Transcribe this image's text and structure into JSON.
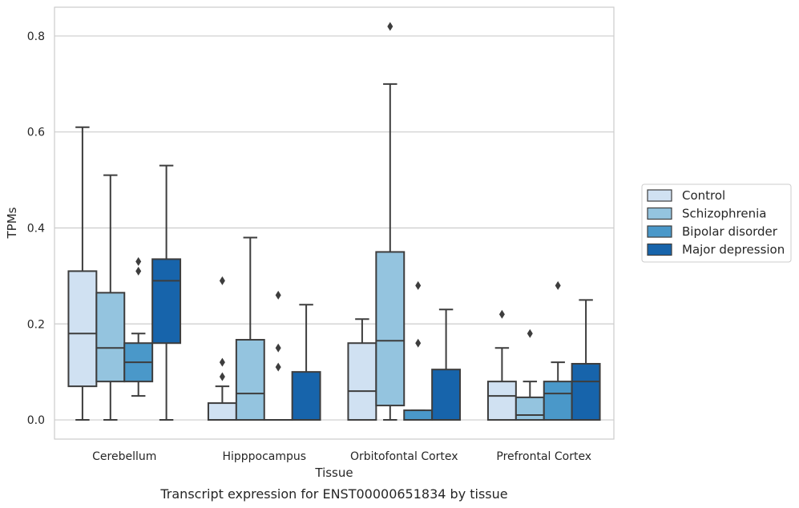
{
  "chart_data": {
    "type": "boxplot",
    "caption": "Transcript expression for ENST00000651834 by tissue",
    "xlabel": "Tissue",
    "ylabel": "TPMs",
    "ylim": [
      -0.04,
      0.86
    ],
    "yticks": [
      0.0,
      0.2,
      0.4,
      0.6,
      0.8
    ],
    "ytick_labels": [
      "0.0",
      "0.2",
      "0.4",
      "0.6",
      "0.8"
    ],
    "grid": "horizontal",
    "legend_position": "right",
    "categories": [
      "Cerebellum",
      "Hipppocampus",
      "Orbitofontal Cortex",
      "Prefrontal Cortex"
    ],
    "series": [
      {
        "name": "Control",
        "color": "#d0e1f2",
        "boxes": [
          {
            "whislo": 0.0,
            "q1": 0.07,
            "med": 0.18,
            "q3": 0.31,
            "whishi": 0.61,
            "fliers": []
          },
          {
            "whislo": 0.0,
            "q1": 0.0,
            "med": 0.0,
            "q3": 0.035,
            "whishi": 0.07,
            "fliers": [
              0.09,
              0.12,
              0.29
            ]
          },
          {
            "whislo": 0.0,
            "q1": 0.0,
            "med": 0.06,
            "q3": 0.16,
            "whishi": 0.21,
            "fliers": []
          },
          {
            "whislo": 0.0,
            "q1": 0.0,
            "med": 0.05,
            "q3": 0.08,
            "whishi": 0.15,
            "fliers": [
              0.22
            ]
          }
        ]
      },
      {
        "name": "Schizophrenia",
        "color": "#94c4df",
        "boxes": [
          {
            "whislo": 0.0,
            "q1": 0.08,
            "med": 0.15,
            "q3": 0.265,
            "whishi": 0.51,
            "fliers": []
          },
          {
            "whislo": 0.0,
            "q1": 0.0,
            "med": 0.055,
            "q3": 0.167,
            "whishi": 0.38,
            "fliers": []
          },
          {
            "whislo": 0.0,
            "q1": 0.03,
            "med": 0.165,
            "q3": 0.35,
            "whishi": 0.7,
            "fliers": [
              0.82
            ]
          },
          {
            "whislo": 0.0,
            "q1": 0.0,
            "med": 0.01,
            "q3": 0.047,
            "whishi": 0.08,
            "fliers": [
              0.18
            ]
          }
        ]
      },
      {
        "name": "Bipolar disorder",
        "color": "#4a98c9",
        "boxes": [
          {
            "whislo": 0.05,
            "q1": 0.08,
            "med": 0.12,
            "q3": 0.16,
            "whishi": 0.18,
            "fliers": [
              0.31,
              0.33
            ]
          },
          {
            "whislo": 0.0,
            "q1": 0.0,
            "med": 0.0,
            "q3": 0.0,
            "whishi": 0.0,
            "fliers": [
              0.11,
              0.15,
              0.26
            ]
          },
          {
            "whislo": 0.0,
            "q1": 0.0,
            "med": 0.0,
            "q3": 0.02,
            "whishi": 0.02,
            "fliers": [
              0.16,
              0.28
            ]
          },
          {
            "whislo": 0.0,
            "q1": 0.0,
            "med": 0.055,
            "q3": 0.08,
            "whishi": 0.12,
            "fliers": [
              0.28
            ]
          }
        ]
      },
      {
        "name": "Major depression",
        "color": "#1764ab",
        "boxes": [
          {
            "whislo": 0.0,
            "q1": 0.16,
            "med": 0.29,
            "q3": 0.335,
            "whishi": 0.53,
            "fliers": []
          },
          {
            "whislo": 0.0,
            "q1": 0.0,
            "med": 0.0,
            "q3": 0.1,
            "whishi": 0.24,
            "fliers": []
          },
          {
            "whislo": 0.0,
            "q1": 0.0,
            "med": 0.0,
            "q3": 0.105,
            "whishi": 0.23,
            "fliers": []
          },
          {
            "whislo": 0.0,
            "q1": 0.0,
            "med": 0.08,
            "q3": 0.117,
            "whishi": 0.25,
            "fliers": []
          }
        ]
      }
    ]
  }
}
